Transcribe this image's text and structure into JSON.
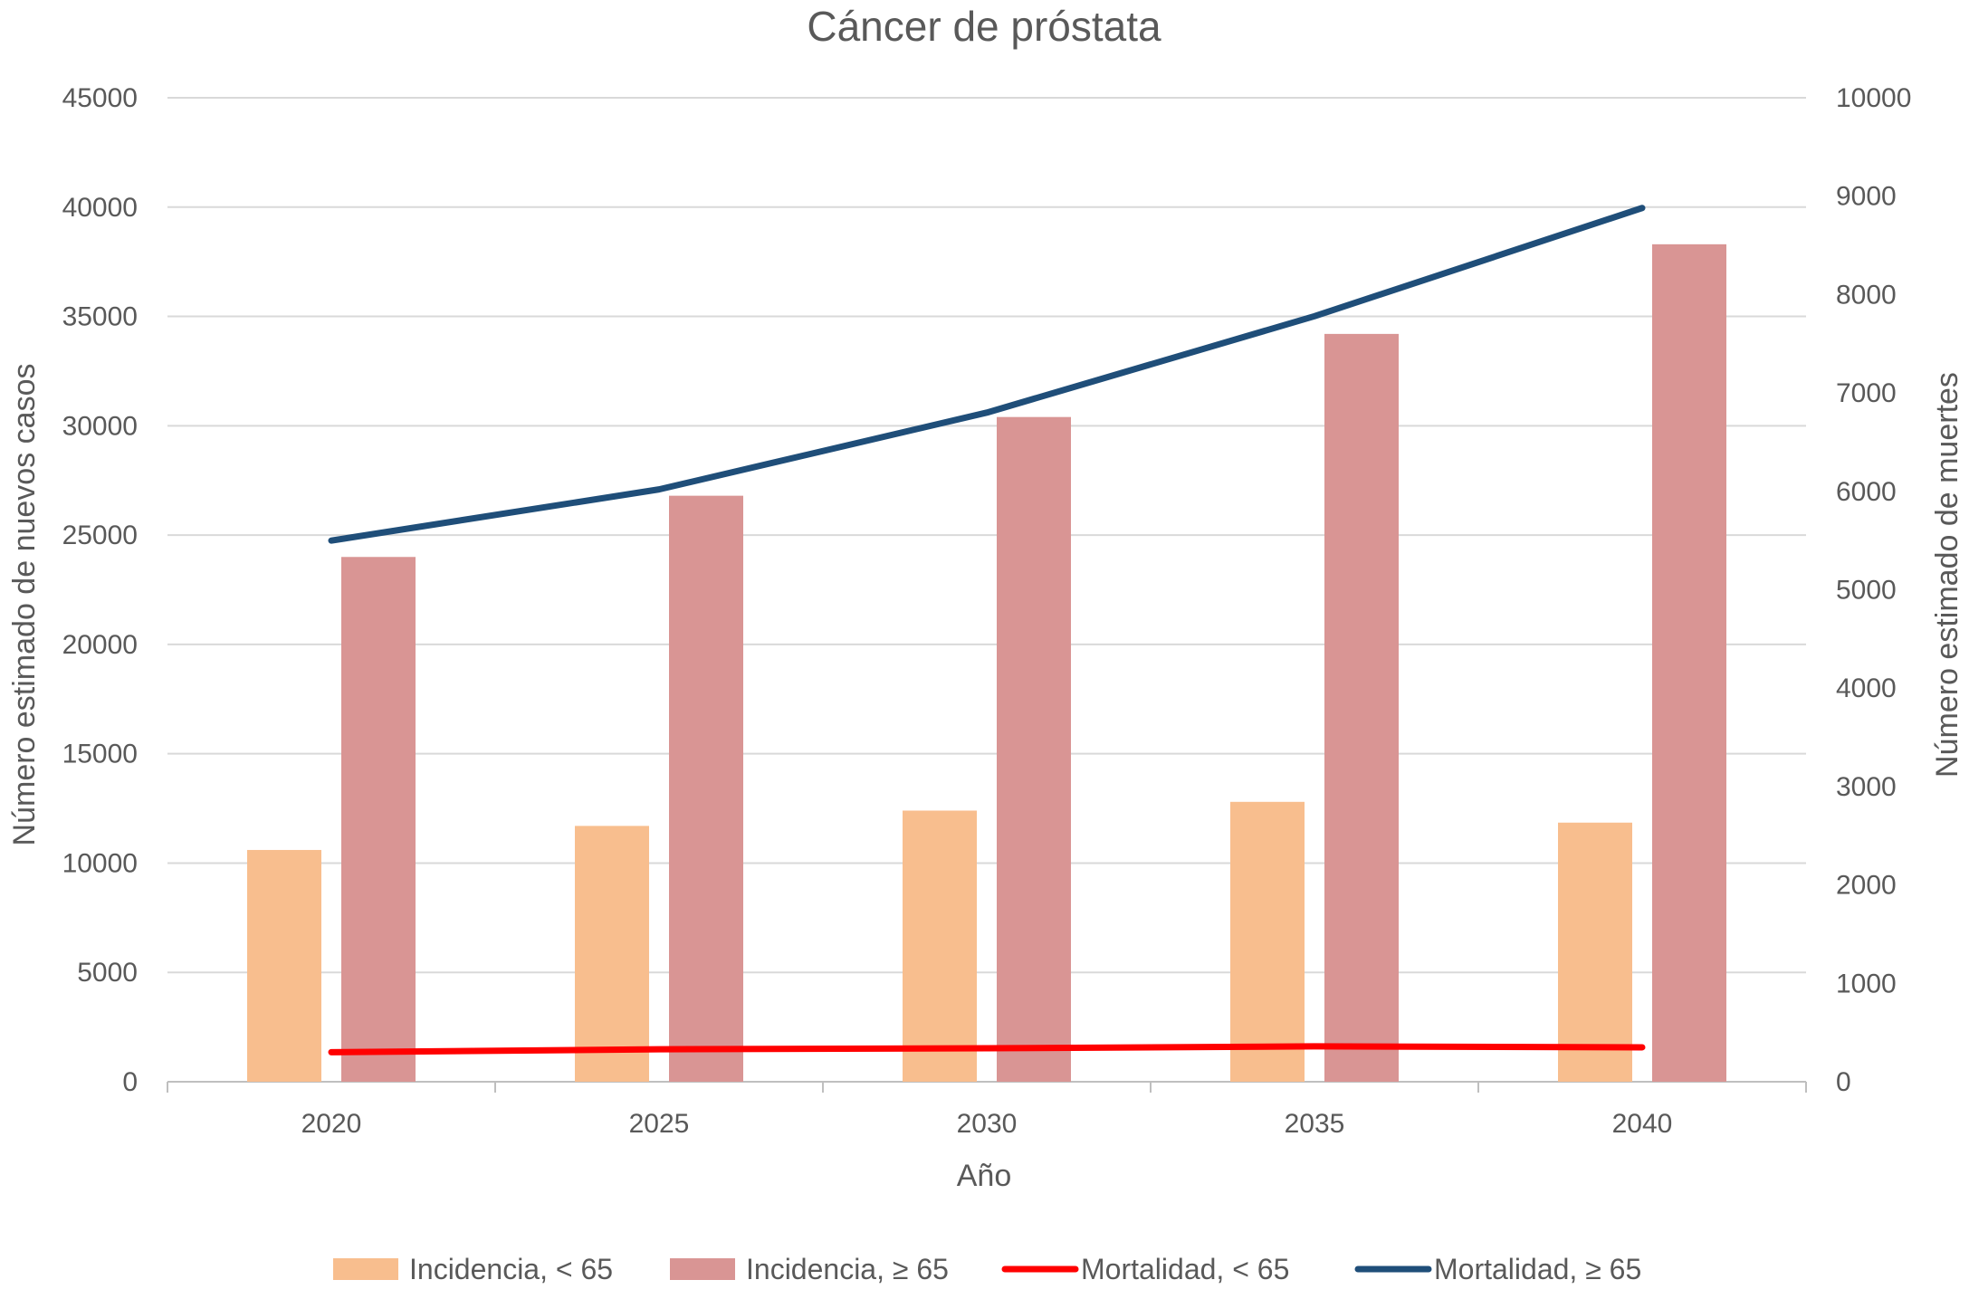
{
  "chart_data": {
    "type": "bar",
    "title": "Cáncer de próstata",
    "xlabel": "Año",
    "ylabel": "Número estimado de nuevos casos",
    "y2label": "Número estimado de muertes",
    "categories": [
      "2020",
      "2025",
      "2030",
      "2035",
      "2040"
    ],
    "ylim": [
      0,
      45000
    ],
    "y2lim": [
      0,
      10000
    ],
    "yticks": [
      "0",
      "5000",
      "10000",
      "15000",
      "20000",
      "25000",
      "30000",
      "35000",
      "40000",
      "45000"
    ],
    "y2ticks": [
      "0",
      "1000",
      "2000",
      "3000",
      "4000",
      "5000",
      "6000",
      "7000",
      "8000",
      "9000",
      "10000"
    ],
    "grid": true,
    "legend_position": "bottom",
    "series": [
      {
        "name": "Incidencia, < 65",
        "type": "bar",
        "axis": "left",
        "color": "#F8BE8E",
        "values": [
          10600,
          11700,
          12400,
          12800,
          11850
        ]
      },
      {
        "name": "Incidencia, ≥ 65",
        "type": "bar",
        "axis": "left",
        "color": "#D99594",
        "values": [
          24000,
          26800,
          30400,
          34200,
          38300
        ]
      },
      {
        "name": "Mortalidad, < 65",
        "type": "line",
        "axis": "right",
        "color": "#FF0000",
        "values": [
          300,
          330,
          340,
          360,
          350
        ]
      },
      {
        "name": "Mortalidad, ≥ 65",
        "type": "line",
        "axis": "right",
        "color": "#1F4E79",
        "values": [
          5500,
          6020,
          6800,
          7780,
          8880
        ]
      }
    ]
  }
}
